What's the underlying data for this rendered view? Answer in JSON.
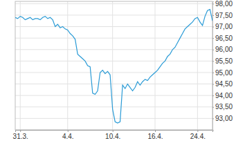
{
  "chart_data": {
    "type": "line",
    "color": "#2a9bd6",
    "grid": true,
    "categories": [
      null,
      null,
      "31.3.",
      null,
      null,
      null,
      null,
      null,
      null,
      null,
      null,
      null,
      null,
      null,
      null,
      null,
      null,
      null,
      null,
      null,
      null,
      "4.4.",
      null,
      null,
      null,
      null,
      null,
      null,
      null,
      null,
      null,
      null,
      null,
      null,
      null,
      null,
      null,
      null,
      null,
      "10.4.",
      null,
      null,
      null,
      null,
      null,
      null,
      null,
      null,
      null,
      null,
      null,
      null,
      null,
      null,
      null,
      null,
      "16.4.",
      null,
      null,
      null,
      null,
      null,
      null,
      null,
      null,
      null,
      null,
      null,
      null,
      null,
      null,
      null,
      null,
      "24.4.",
      null,
      null,
      null,
      null,
      null,
      null
    ],
    "values": [
      97.4,
      97.35,
      97.45,
      97.4,
      97.3,
      97.35,
      97.4,
      97.3,
      97.35,
      97.35,
      97.3,
      97.4,
      97.45,
      97.35,
      97.4,
      97.3,
      97.0,
      97.1,
      96.95,
      97.0,
      96.9,
      96.85,
      96.7,
      96.6,
      96.45,
      95.8,
      95.7,
      95.6,
      95.5,
      95.3,
      95.25,
      94.1,
      94.05,
      94.2,
      95.0,
      95.1,
      94.95,
      95.05,
      94.9,
      93.4,
      92.85,
      92.8,
      92.85,
      94.45,
      94.3,
      94.5,
      94.35,
      94.2,
      94.35,
      94.6,
      94.45,
      94.6,
      94.7,
      94.65,
      94.8,
      94.9,
      95.0,
      95.1,
      95.25,
      95.4,
      95.5,
      95.7,
      95.8,
      96.0,
      96.1,
      96.3,
      96.5,
      96.7,
      96.9,
      97.0,
      97.1,
      97.2,
      97.35,
      97.4,
      97.2,
      97.05,
      97.45,
      97.7,
      97.75,
      97.25
    ],
    "ylim": [
      92.5,
      98.1
    ],
    "yticks": [
      {
        "value": 93,
        "label": "93,00"
      },
      {
        "value": 93.5,
        "label": "93,50"
      },
      {
        "value": 94,
        "label": "94,00"
      },
      {
        "value": 94.5,
        "label": "94,50"
      },
      {
        "value": 95,
        "label": "95,00"
      },
      {
        "value": 95.5,
        "label": "95,50"
      },
      {
        "value": 96,
        "label": "96,00"
      },
      {
        "value": 96.5,
        "label": "96,50"
      },
      {
        "value": 97,
        "label": "97,00"
      },
      {
        "value": 97.5,
        "label": "97,50"
      },
      {
        "value": 98,
        "label": "98,00"
      }
    ]
  }
}
